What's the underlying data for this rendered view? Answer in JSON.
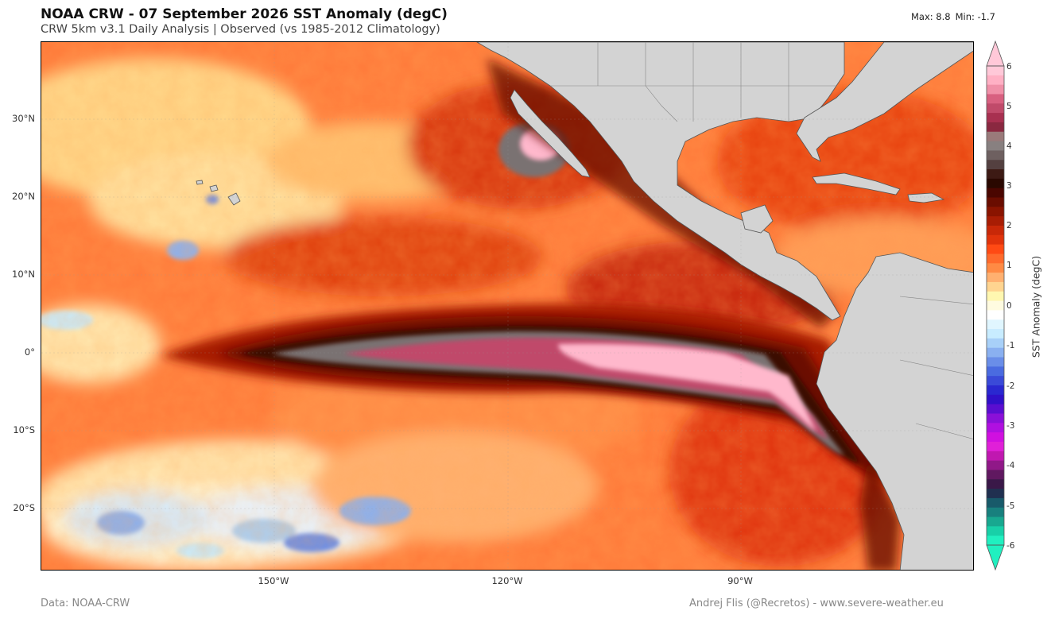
{
  "header": {
    "title": "NOAA CRW - 07 September 2026 SST Anomaly (degC)",
    "subtitle": "CRW 5km v3.1 Daily Analysis  |  Observed (vs 1985-2012 Climatology)",
    "max_label": "Max: 8.8",
    "min_label": "Min: -1.7"
  },
  "map": {
    "latitude_labels": [
      "30°N",
      "20°N",
      "10°N",
      "0°",
      "10°S",
      "20°S"
    ],
    "longitude_labels": [
      "150°W",
      "120°W",
      "90°W"
    ],
    "land_color": "#d3d3d3",
    "warm_colors": [
      "#fff7b0",
      "#ffd07a",
      "#ff9a55",
      "#ff5a1e",
      "#e0330b",
      "#a81d04",
      "#6a0d00",
      "#3a0a05",
      "#7a7272",
      "#c04a6a",
      "#ffb8cc"
    ],
    "cool_colors": [
      "#ffffff",
      "#c8ecff",
      "#7fa6f0",
      "#4a6be0"
    ]
  },
  "colorbar": {
    "label": "SST Anomaly (degC)",
    "ticks": [
      "6",
      "5",
      "4",
      "3",
      "2",
      "1",
      "0",
      "-1",
      "-2",
      "-3",
      "-4",
      "-5",
      "-6"
    ],
    "colors": [
      "#ffc8d8",
      "#ffb0c4",
      "#f090a8",
      "#d86080",
      "#c04a6a",
      "#a83050",
      "#8a2840",
      "#9a7a7a",
      "#888080",
      "#6e6060",
      "#544040",
      "#3d1a14",
      "#2a0800",
      "#4a0600",
      "#6a0d00",
      "#8a1400",
      "#a81d04",
      "#c82808",
      "#e0330b",
      "#ff4a14",
      "#ff6a2c",
      "#ff8a44",
      "#ffb070",
      "#ffd490",
      "#fff7b0",
      "#fffbe0",
      "#ffffff",
      "#e0f6ff",
      "#c8ecff",
      "#a8d0f8",
      "#8ab0f0",
      "#6a8ee8",
      "#4a6be0",
      "#3a4ad8",
      "#2a28d0",
      "#3010c8",
      "#5a0ed0",
      "#8a10d8",
      "#b010e0",
      "#d010e0",
      "#e020d8",
      "#c018b0",
      "#901888",
      "#601860",
      "#3a1848",
      "#203050",
      "#185a6a",
      "#18807e",
      "#18a890",
      "#18d0a8",
      "#20f0c0"
    ]
  },
  "footer": {
    "source": "Data: NOAA-CRW",
    "credit": "Andrej Flis (@Recretos) - www.severe-weather.eu"
  }
}
